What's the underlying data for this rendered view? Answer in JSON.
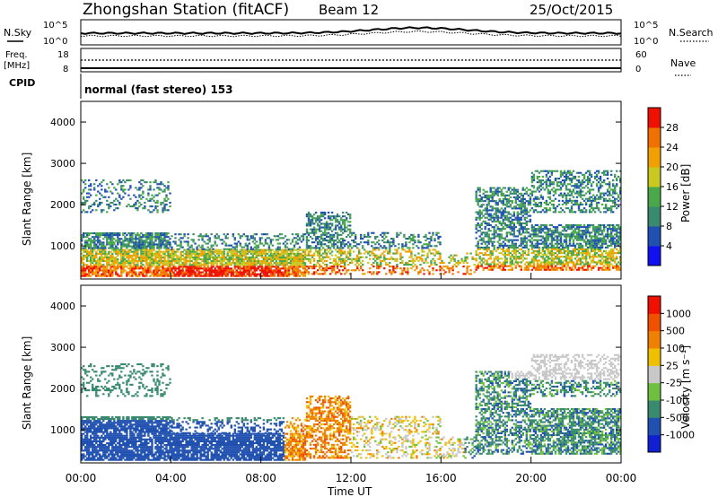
{
  "header": {
    "title": "Zhongshan Station (fitACF)",
    "beam": "Beam 12",
    "date": "25/Oct/2015"
  },
  "noise_panel": {
    "left_label": "N.Sky",
    "left_ticks": [
      "10^5",
      "10^0"
    ],
    "right_label": "N.Search",
    "right_ticks": [
      "10^5",
      "10^0"
    ]
  },
  "freq_panel": {
    "left_label_1": "Freq.",
    "left_label_2": "[MHz]",
    "left_ticks": [
      "18",
      "8"
    ],
    "right_label": "Nave",
    "right_ticks": [
      "60",
      "0"
    ]
  },
  "cpid": {
    "label": "CPID",
    "value": "normal (fast stereo) 153"
  },
  "x_axis": {
    "label": "Time UT",
    "ticks": [
      "00:00",
      "04:00",
      "08:00",
      "12:00",
      "16:00",
      "20:00",
      "00:00"
    ]
  },
  "colors": {
    "power_scale": [
      "#1010f0",
      "#2050b0",
      "#3a8a70",
      "#4aa84a",
      "#c8c820",
      "#f0a000",
      "#f07000",
      "#f01000"
    ],
    "velocity_scale": [
      "#f01000",
      "#f05000",
      "#f08000",
      "#f0c000",
      "#c8c8c8",
      "#70c040",
      "#3a8a70",
      "#2050b0",
      "#1020d0"
    ]
  },
  "chart_data": [
    {
      "type": "heatmap",
      "title": "Power",
      "xlabel": "",
      "ylabel": "Slant Range [km]",
      "y_ticks": [
        "1000",
        "2000",
        "3000",
        "4000"
      ],
      "ylim": [
        200,
        4500
      ],
      "xlim_hours": [
        0,
        24
      ],
      "colorbar": {
        "label": "Power [dB]",
        "ticks": [
          "4",
          "8",
          "12",
          "16",
          "20",
          "24",
          "28"
        ],
        "range": [
          0,
          30
        ]
      }
    },
    {
      "type": "heatmap",
      "title": "Velocity",
      "xlabel": "Time UT",
      "ylabel": "Slant Range [km]",
      "y_ticks": [
        "1000",
        "2000",
        "3000",
        "4000"
      ],
      "ylim": [
        200,
        4500
      ],
      "xlim_hours": [
        0,
        24
      ],
      "colorbar": {
        "label": "Velocity [m s⁻¹]",
        "ticks": [
          "1000",
          "500",
          "100",
          "25",
          "-25",
          "-100",
          "-500",
          "-1000"
        ]
      }
    }
  ]
}
